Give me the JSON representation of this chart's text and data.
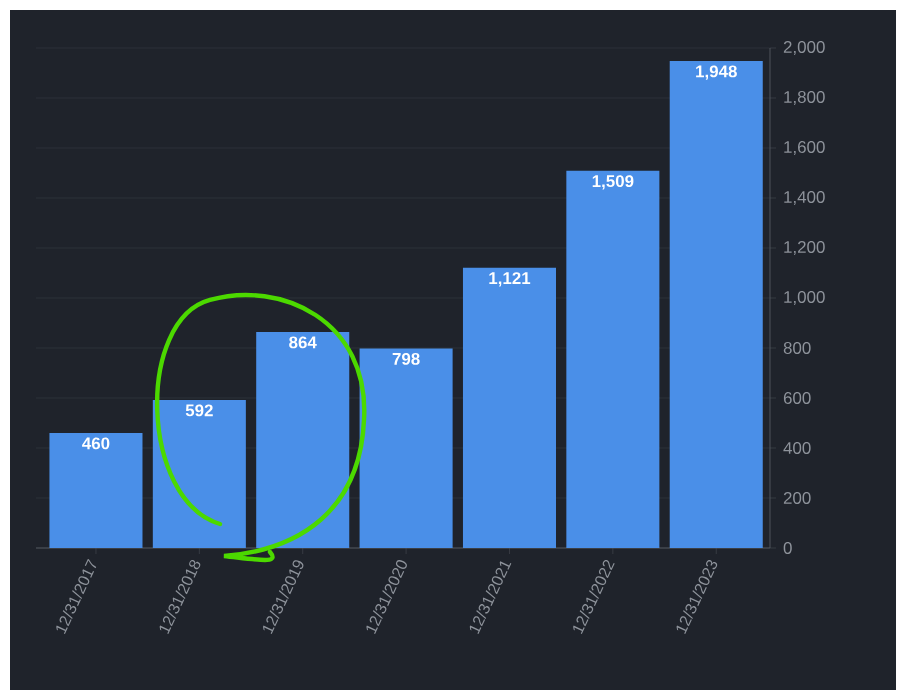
{
  "chart_data": {
    "type": "bar",
    "categories": [
      "12/31/2017",
      "12/31/2018",
      "12/31/2019",
      "12/31/2020",
      "12/31/2021",
      "12/31/2022",
      "12/31/2023"
    ],
    "values": [
      460,
      592,
      864,
      798,
      1121,
      1509,
      1948
    ],
    "value_labels": [
      "460",
      "592",
      "864",
      "798",
      "1,121",
      "1,509",
      "1,948"
    ],
    "color": "#4a8fe8",
    "ylim": [
      0,
      2000
    ],
    "yticks": [
      0,
      {
        "value": 200,
        "label": "200"
      },
      {
        "value": 400,
        "label": "400"
      },
      {
        "value": 600,
        "label": "600"
      },
      {
        "value": 800,
        "label": "800"
      },
      {
        "value": 1000,
        "label": "1,000"
      },
      {
        "value": 1200,
        "label": "1,200"
      },
      {
        "value": 1400,
        "label": "1,400"
      },
      {
        "value": 1600,
        "label": "1,600"
      },
      {
        "value": 1800,
        "label": "1,800"
      },
      {
        "value": 2000,
        "label": "2,000"
      }
    ],
    "grid": "y"
  }
}
